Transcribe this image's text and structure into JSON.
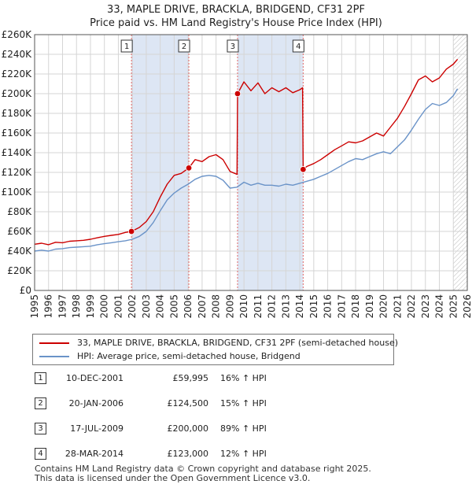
{
  "title_line1": "33, MAPLE DRIVE, BRACKLA, BRIDGEND, CF31 2PF",
  "title_line2": "Price paid vs. HM Land Registry's House Price Index (HPI)",
  "colors": {
    "property": "#cc0000",
    "hpi": "#6a93c8",
    "band": "#dde6f4",
    "vline": "#e06666",
    "grid": "#d5d5d5",
    "hatch": "#bbbbbb"
  },
  "legend": {
    "property_label": "33, MAPLE DRIVE, BRACKLA, BRIDGEND, CF31 2PF (semi-detached house)",
    "hpi_label": "HPI: Average price, semi-detached house, Bridgend"
  },
  "sales": [
    {
      "num": "1",
      "date": "10-DEC-2001",
      "price": "£59,995",
      "hpi": "16% ↑ HPI",
      "t": 2001.94,
      "value": 59995
    },
    {
      "num": "2",
      "date": "20-JAN-2006",
      "price": "£124,500",
      "hpi": "15% ↑ HPI",
      "t": 2006.05,
      "value": 124500
    },
    {
      "num": "3",
      "date": "17-JUL-2009",
      "price": "£200,000",
      "hpi": "89% ↑ HPI",
      "t": 2009.54,
      "value": 200000
    },
    {
      "num": "4",
      "date": "28-MAR-2014",
      "price": "£123,000",
      "hpi": "12% ↑ HPI",
      "t": 2014.24,
      "value": 123000
    }
  ],
  "footer": {
    "line1": "Contains HM Land Registry data © Crown copyright and database right 2025.",
    "line2": "This data is licensed under the Open Government Licence v3.0."
  },
  "chart_data": {
    "type": "line",
    "title": "33, MAPLE DRIVE, BRACKLA, BRIDGEND, CF31 2PF — Price paid vs. HM Land Registry's House Price Index (HPI)",
    "xlim": [
      1995,
      2026
    ],
    "ylim": [
      0,
      260000
    ],
    "x_ticks": [
      "1995",
      "1996",
      "1997",
      "1998",
      "1999",
      "2000",
      "2001",
      "2002",
      "2003",
      "2004",
      "2005",
      "2006",
      "2007",
      "2008",
      "2009",
      "2010",
      "2011",
      "2012",
      "2013",
      "2014",
      "2015",
      "2016",
      "2017",
      "2018",
      "2019",
      "2020",
      "2021",
      "2022",
      "2023",
      "2024",
      "2025",
      "2026"
    ],
    "y_ticks": [
      {
        "v": 0,
        "label": "£0"
      },
      {
        "v": 20000,
        "label": "£20K"
      },
      {
        "v": 40000,
        "label": "£40K"
      },
      {
        "v": 60000,
        "label": "£60K"
      },
      {
        "v": 80000,
        "label": "£80K"
      },
      {
        "v": 100000,
        "label": "£100K"
      },
      {
        "v": 120000,
        "label": "£120K"
      },
      {
        "v": 140000,
        "label": "£140K"
      },
      {
        "v": 160000,
        "label": "£160K"
      },
      {
        "v": 180000,
        "label": "£180K"
      },
      {
        "v": 200000,
        "label": "£200K"
      },
      {
        "v": 220000,
        "label": "£220K"
      },
      {
        "v": 240000,
        "label": "£240K"
      },
      {
        "v": 260000,
        "label": "£260K"
      }
    ],
    "shaded_ranges": [
      [
        2001.94,
        2006.05
      ],
      [
        2009.54,
        2014.24
      ]
    ],
    "hatched_from": 2025.0,
    "series": [
      {
        "name": "33, MAPLE DRIVE, BRACKLA, BRIDGEND, CF31 2PF (semi-detached house)",
        "x": [
          1995.0,
          1995.5,
          1996.0,
          1996.5,
          1997.0,
          1997.5,
          1998.0,
          1998.5,
          1999.0,
          1999.5,
          2000.0,
          2000.5,
          2001.0,
          2001.5,
          2001.94,
          2002.5,
          2003.0,
          2003.5,
          2004.0,
          2004.5,
          2005.0,
          2005.5,
          2006.05,
          2006.5,
          2007.0,
          2007.5,
          2008.0,
          2008.5,
          2009.0,
          2009.5,
          2009.54,
          2010.0,
          2010.5,
          2011.0,
          2011.5,
          2012.0,
          2012.5,
          2013.0,
          2013.5,
          2014.0,
          2014.2,
          2014.24,
          2014.5,
          2015.0,
          2015.5,
          2016.0,
          2016.5,
          2017.0,
          2017.5,
          2018.0,
          2018.5,
          2019.0,
          2019.5,
          2020.0,
          2020.5,
          2021.0,
          2021.5,
          2022.0,
          2022.5,
          2023.0,
          2023.5,
          2024.0,
          2024.5,
          2025.0,
          2025.3
        ],
        "y": [
          47000,
          48000,
          46500,
          49000,
          48500,
          50000,
          50500,
          51000,
          52000,
          53500,
          55000,
          56000,
          57000,
          59000,
          59995,
          64000,
          70000,
          80000,
          95000,
          108000,
          117000,
          119000,
          124500,
          133000,
          131000,
          136000,
          138000,
          133000,
          121000,
          118000,
          200000,
          212000,
          203000,
          211000,
          200000,
          206000,
          202000,
          206000,
          201000,
          204000,
          206000,
          123000,
          126000,
          129000,
          133000,
          138000,
          143000,
          147000,
          151000,
          150000,
          152000,
          156000,
          160000,
          157000,
          166000,
          175000,
          187000,
          200000,
          214000,
          218000,
          212000,
          216000,
          225000,
          230000,
          235000
        ]
      },
      {
        "name": "HPI: Average price, semi-detached house, Bridgend",
        "x": [
          1995.0,
          1995.5,
          1996.0,
          1996.5,
          1997.0,
          1997.5,
          1998.0,
          1998.5,
          1999.0,
          1999.5,
          2000.0,
          2000.5,
          2001.0,
          2001.5,
          2002.0,
          2002.5,
          2003.0,
          2003.5,
          2004.0,
          2004.5,
          2005.0,
          2005.5,
          2006.0,
          2006.5,
          2007.0,
          2007.5,
          2008.0,
          2008.5,
          2009.0,
          2009.5,
          2010.0,
          2010.5,
          2011.0,
          2011.5,
          2012.0,
          2012.5,
          2013.0,
          2013.5,
          2014.0,
          2014.5,
          2015.0,
          2015.5,
          2016.0,
          2016.5,
          2017.0,
          2017.5,
          2018.0,
          2018.5,
          2019.0,
          2019.5,
          2020.0,
          2020.5,
          2021.0,
          2021.5,
          2022.0,
          2022.5,
          2023.0,
          2023.5,
          2024.0,
          2024.5,
          2025.0,
          2025.3
        ],
        "y": [
          40000,
          41000,
          40000,
          42000,
          42500,
          43500,
          44000,
          44500,
          45000,
          46500,
          47500,
          48500,
          49500,
          50500,
          52000,
          55000,
          60000,
          69000,
          81000,
          92000,
          99000,
          104000,
          108000,
          113000,
          116000,
          117000,
          116000,
          112000,
          104000,
          105000,
          110000,
          107000,
          109000,
          107000,
          107000,
          106000,
          108000,
          107000,
          109000,
          111000,
          113000,
          116000,
          119000,
          123000,
          127000,
          131000,
          134000,
          133000,
          136000,
          139000,
          141000,
          139000,
          146000,
          153000,
          163000,
          174000,
          184000,
          190000,
          188000,
          191000,
          198000,
          205000
        ]
      }
    ]
  }
}
